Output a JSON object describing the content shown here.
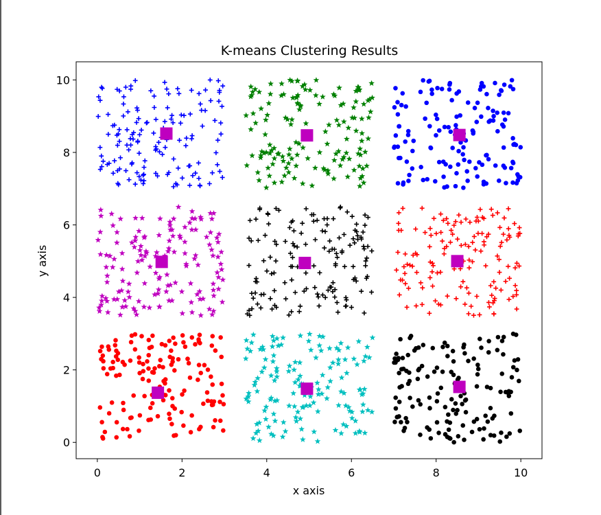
{
  "chart_data": {
    "type": "scatter",
    "title": "K-means Clustering Results",
    "xlabel": "x axis",
    "ylabel": "y axis",
    "xlim": [
      -0.5,
      10.5
    ],
    "ylim": [
      -0.45,
      10.5
    ],
    "xticks": [
      0,
      2,
      4,
      6,
      8,
      10
    ],
    "yticks": [
      0,
      2,
      4,
      6,
      8,
      10
    ],
    "grid": false,
    "clusters": [
      {
        "marker": "circle",
        "color": "#ff0000",
        "x_range": [
          0,
          3
        ],
        "y_range": [
          0,
          3
        ],
        "count": 150,
        "centroid": [
          1.43,
          1.37
        ]
      },
      {
        "marker": "star",
        "color": "#00bfbf",
        "x_range": [
          3.5,
          6.5
        ],
        "y_range": [
          0,
          3
        ],
        "count": 150,
        "centroid": [
          4.95,
          1.48
        ]
      },
      {
        "marker": "circle",
        "color": "#000000",
        "x_range": [
          7,
          10
        ],
        "y_range": [
          0,
          3
        ],
        "count": 150,
        "centroid": [
          8.55,
          1.53
        ]
      },
      {
        "marker": "star",
        "color": "#bf00bf",
        "x_range": [
          0,
          3
        ],
        "y_range": [
          3.5,
          6.5
        ],
        "count": 150,
        "centroid": [
          1.52,
          4.98
        ]
      },
      {
        "marker": "plus",
        "color": "#000000",
        "x_range": [
          3.5,
          6.5
        ],
        "y_range": [
          3.5,
          6.5
        ],
        "count": 150,
        "centroid": [
          4.9,
          4.95
        ]
      },
      {
        "marker": "plus",
        "color": "#ff0000",
        "x_range": [
          7,
          10
        ],
        "y_range": [
          3.5,
          6.5
        ],
        "count": 150,
        "centroid": [
          8.5,
          5.0
        ]
      },
      {
        "marker": "plus",
        "color": "#0000ff",
        "x_range": [
          0,
          3
        ],
        "y_range": [
          7,
          10
        ],
        "count": 150,
        "centroid": [
          1.63,
          8.52
        ]
      },
      {
        "marker": "star",
        "color": "#008000",
        "x_range": [
          3.5,
          6.5
        ],
        "y_range": [
          7,
          10
        ],
        "count": 150,
        "centroid": [
          4.95,
          8.47
        ]
      },
      {
        "marker": "circle",
        "color": "#0000ff",
        "x_range": [
          7,
          10
        ],
        "y_range": [
          7,
          10
        ],
        "count": 150,
        "centroid": [
          8.55,
          8.48
        ]
      }
    ],
    "centroid_marker": "square",
    "centroid_color": "#bf00bf"
  }
}
